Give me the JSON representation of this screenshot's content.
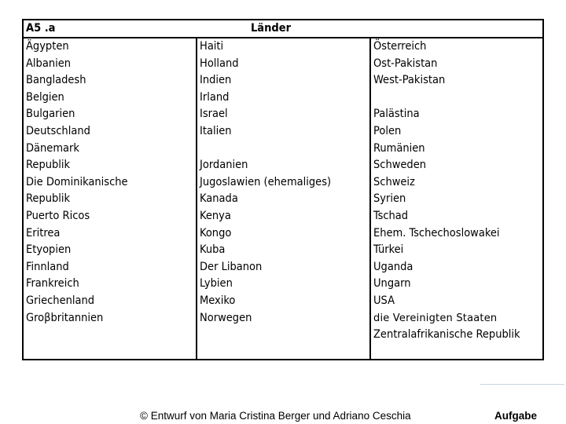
{
  "header": {
    "code": "A5 .a",
    "title": "Länder"
  },
  "columns": [
    [
      "Ägypten",
      "Albanien",
      "Bangladesh",
      "Belgien",
      "Bulgarien",
      "Deutschland",
      "Dänemark",
      "Republik",
      "Die Dominikanische",
      "Republik",
      "Puerto Ricos",
      "Eritrea",
      "Etyopien",
      "Finnland",
      "Frankreich",
      "Griechenland",
      "Groβbritannien"
    ],
    [
      "Haiti",
      "Holland",
      "Indien",
      "Irland",
      "Israel",
      "Italien",
      "",
      "Jordanien",
      "Jugoslawien (ehemaliges)",
      "Kanada",
      "Kenya",
      "Kongo",
      "Kuba",
      "Der Libanon",
      "Lybien",
      "Mexiko",
      "Norwegen"
    ],
    [
      "Österreich",
      "Ost-Pakistan",
      "West-Pakistan",
      "",
      "Palästina",
      "Polen",
      "Rumänien",
      "Schweden",
      "Schweiz",
      "Syrien",
      "Tschad",
      "Ehem. Tschechoslowakei",
      "Türkei",
      "Uganda",
      "Ungarn",
      "USA",
      "die Vereinigten Staaten",
      "Zentralafrikanische Republik"
    ]
  ],
  "footer": {
    "credit": "© Entwurf von  Maria Cristina Berger und Adriano Ceschia",
    "label": "Aufgabe"
  }
}
